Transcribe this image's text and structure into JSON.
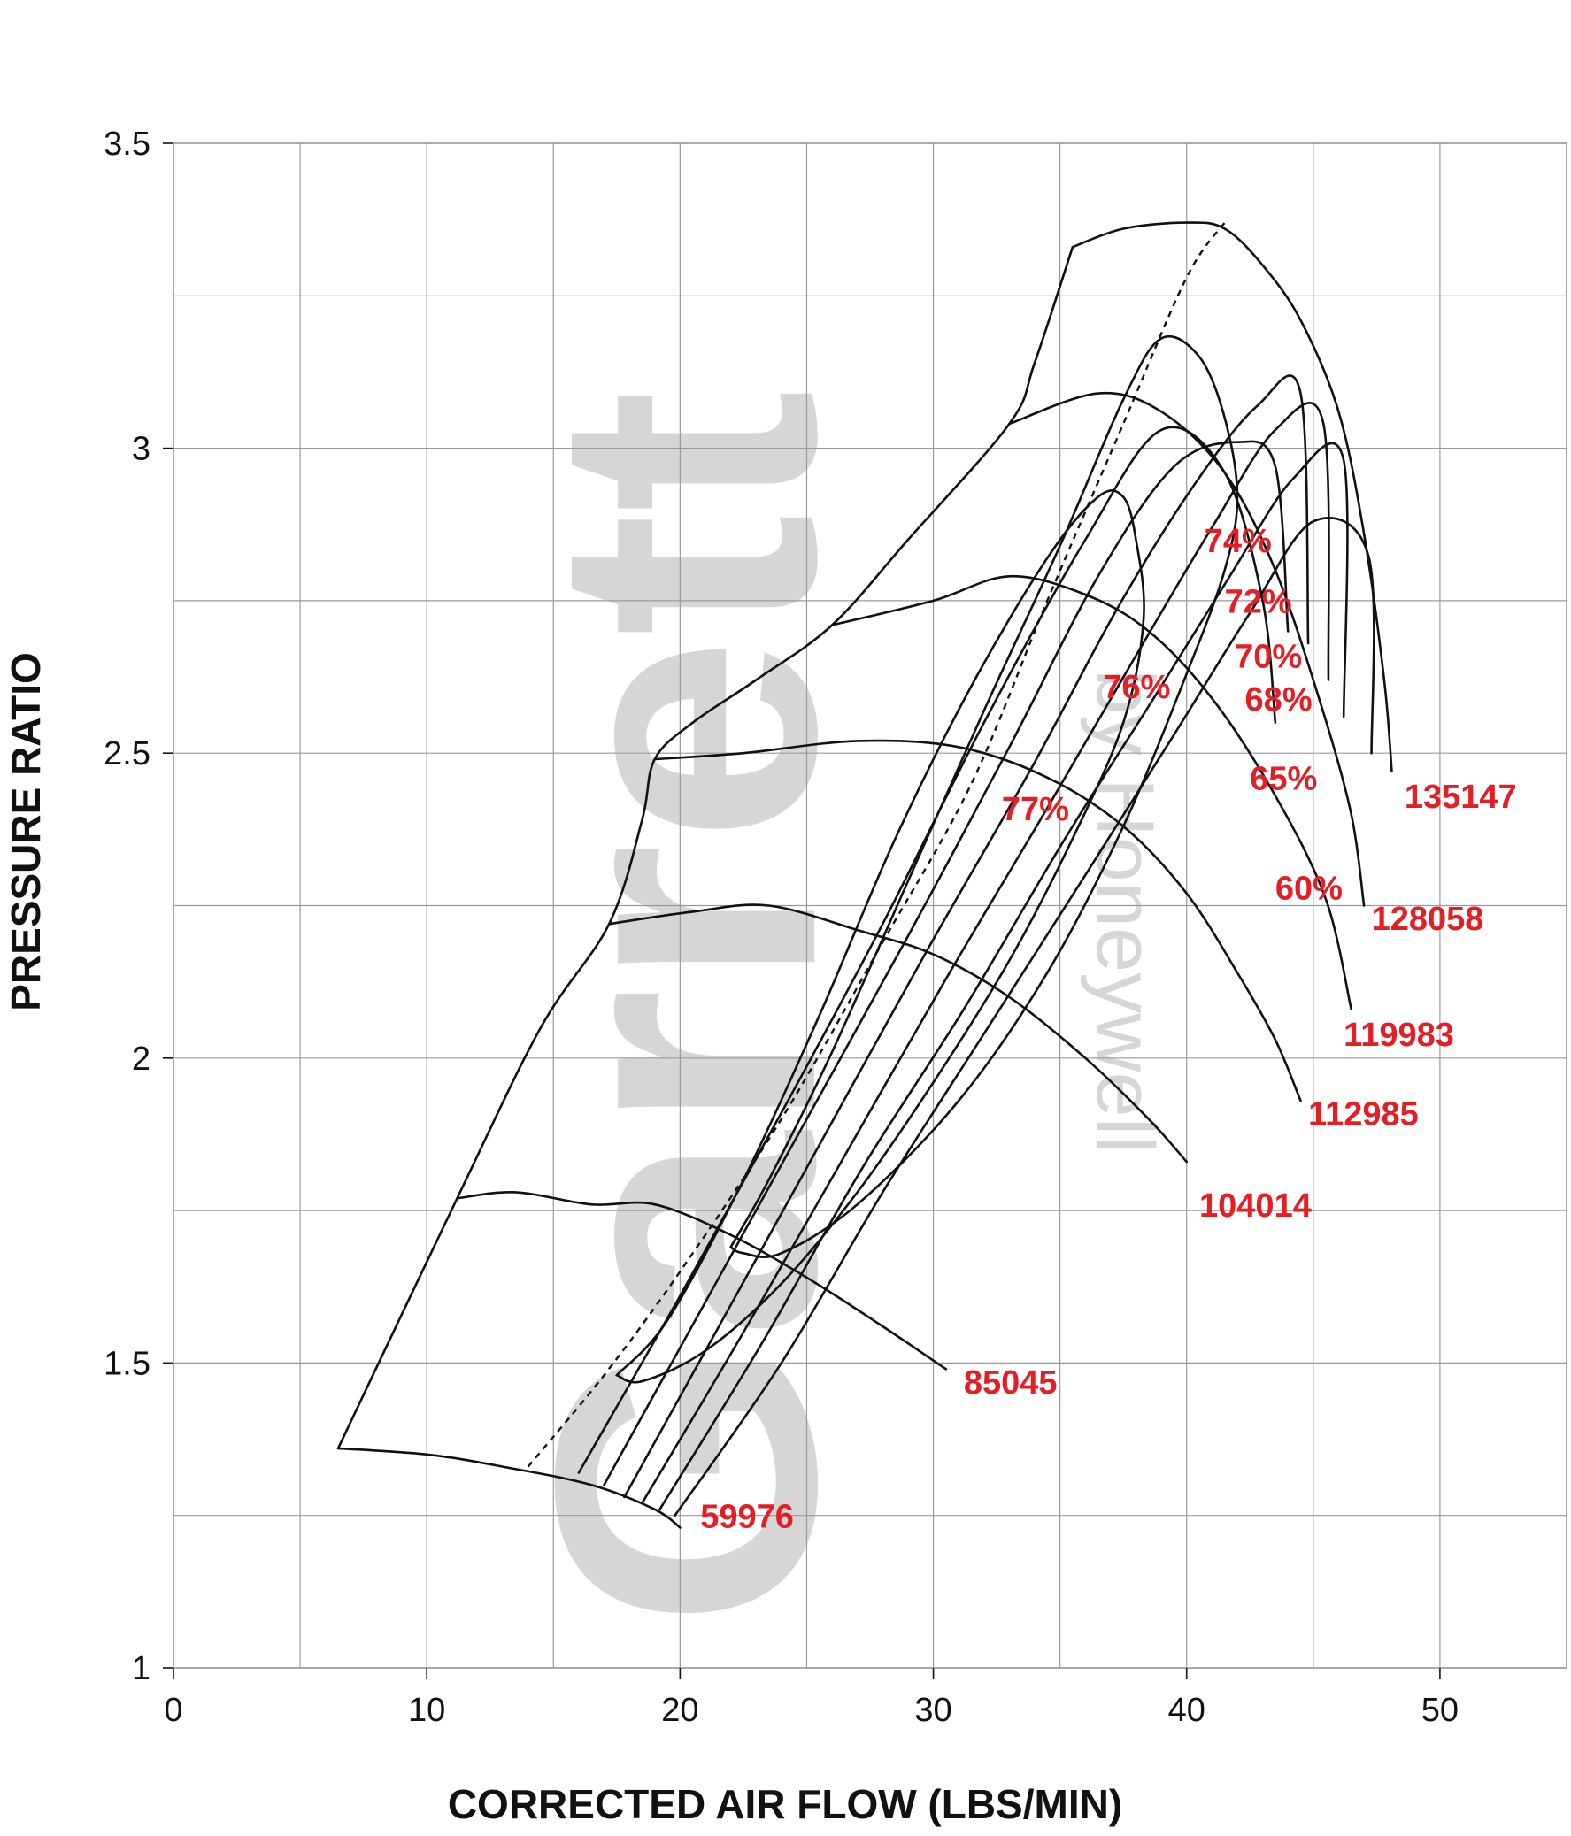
{
  "chart_data": {
    "type": "line",
    "title": "",
    "xlabel": "CORRECTED AIR FLOW (LBS/MIN)",
    "ylabel": "PRESSURE RATIO",
    "xlim": [
      0,
      55
    ],
    "ylim": [
      1,
      3.5
    ],
    "x_ticks": [
      "0",
      "10",
      "20",
      "30",
      "40",
      "50"
    ],
    "y_ticks": [
      "1",
      "1.5",
      "2",
      "2.5",
      "3",
      "3.5"
    ],
    "grid": true,
    "watermark": {
      "brand": "Garrett",
      "sub": "by Honeywell"
    },
    "speed_lines": [
      {
        "name": "59976",
        "points": [
          [
            6.5,
            1.36
          ],
          [
            10,
            1.35
          ],
          [
            13,
            1.33
          ],
          [
            16.5,
            1.3
          ],
          [
            19,
            1.26
          ],
          [
            20,
            1.23
          ]
        ]
      },
      {
        "name": "85045",
        "points": [
          [
            11.2,
            1.77
          ],
          [
            13.5,
            1.78
          ],
          [
            16.5,
            1.76
          ],
          [
            19,
            1.76
          ],
          [
            22,
            1.71
          ],
          [
            25,
            1.64
          ],
          [
            28,
            1.56
          ],
          [
            30.5,
            1.49
          ]
        ]
      },
      {
        "name": "104014",
        "points": [
          [
            17.2,
            2.22
          ],
          [
            20.5,
            2.24
          ],
          [
            23.5,
            2.25
          ],
          [
            27,
            2.21
          ],
          [
            30,
            2.17
          ],
          [
            33,
            2.1
          ],
          [
            36,
            2.0
          ],
          [
            38.5,
            1.9
          ],
          [
            40,
            1.83
          ]
        ]
      },
      {
        "name": "112985",
        "points": [
          [
            19,
            2.49
          ],
          [
            22.5,
            2.5
          ],
          [
            27,
            2.52
          ],
          [
            31,
            2.51
          ],
          [
            34.5,
            2.46
          ],
          [
            37.5,
            2.38
          ],
          [
            40,
            2.27
          ],
          [
            42,
            2.14
          ],
          [
            43.5,
            2.03
          ],
          [
            44.5,
            1.93
          ]
        ]
      },
      {
        "name": "119983",
        "points": [
          [
            26,
            2.71
          ],
          [
            30,
            2.75
          ],
          [
            33,
            2.79
          ],
          [
            36,
            2.76
          ],
          [
            38.5,
            2.7
          ],
          [
            41,
            2.59
          ],
          [
            43.5,
            2.43
          ],
          [
            45.5,
            2.26
          ],
          [
            46.5,
            2.08
          ]
        ]
      },
      {
        "name": "128058",
        "points": [
          [
            33,
            3.04
          ],
          [
            36.5,
            3.09
          ],
          [
            39,
            3.06
          ],
          [
            41.5,
            2.96
          ],
          [
            43.5,
            2.8
          ],
          [
            45.3,
            2.58
          ],
          [
            46.5,
            2.4
          ],
          [
            47,
            2.25
          ]
        ]
      },
      {
        "name": "135147",
        "points": [
          [
            35.5,
            3.33
          ],
          [
            37.5,
            3.36
          ],
          [
            40,
            3.37
          ],
          [
            41.5,
            3.36
          ],
          [
            43,
            3.3
          ],
          [
            44.5,
            3.21
          ],
          [
            46,
            3.06
          ],
          [
            47,
            2.86
          ],
          [
            47.8,
            2.62
          ],
          [
            48.1,
            2.47
          ]
        ]
      }
    ],
    "efficiency_islands": [
      {
        "label": "77%",
        "points": [
          [
            17.5,
            1.48
          ],
          [
            19.5,
            1.57
          ],
          [
            22.5,
            1.8
          ],
          [
            25.5,
            2.07
          ],
          [
            28.5,
            2.36
          ],
          [
            31.5,
            2.61
          ],
          [
            34.5,
            2.82
          ],
          [
            36.5,
            2.92
          ],
          [
            37.5,
            2.92
          ],
          [
            38,
            2.85
          ],
          [
            38.3,
            2.72
          ],
          [
            37.5,
            2.55
          ],
          [
            35.5,
            2.36
          ],
          [
            33,
            2.16
          ],
          [
            30,
            1.96
          ],
          [
            27,
            1.78
          ],
          [
            24,
            1.63
          ],
          [
            21,
            1.52
          ],
          [
            18.5,
            1.47
          ],
          [
            17.5,
            1.48
          ]
        ]
      },
      {
        "label": "76%",
        "points": [
          [
            22,
            1.69
          ],
          [
            23.5,
            1.8
          ],
          [
            26,
            2.01
          ],
          [
            29,
            2.29
          ],
          [
            32,
            2.57
          ],
          [
            35,
            2.84
          ],
          [
            37.5,
            3.08
          ],
          [
            39,
            3.18
          ],
          [
            40.5,
            3.15
          ],
          [
            41.5,
            3.05
          ],
          [
            42,
            2.92
          ],
          [
            41.5,
            2.8
          ],
          [
            40,
            2.63
          ],
          [
            37.5,
            2.38
          ],
          [
            34.5,
            2.14
          ],
          [
            31,
            1.93
          ],
          [
            27,
            1.76
          ],
          [
            24,
            1.68
          ],
          [
            22.5,
            1.68
          ],
          [
            22,
            1.69
          ]
        ]
      },
      {
        "label": "74%",
        "points": [
          [
            16,
            1.32
          ],
          [
            20,
            1.61
          ],
          [
            24,
            1.91
          ],
          [
            28,
            2.22
          ],
          [
            32,
            2.55
          ],
          [
            36,
            2.85
          ],
          [
            39,
            3.03
          ],
          [
            41.5,
            2.96
          ],
          [
            43,
            2.75
          ],
          [
            43.5,
            2.55
          ]
        ]
      },
      {
        "label": "72%",
        "points": [
          [
            17,
            1.3
          ],
          [
            21,
            1.6
          ],
          [
            25,
            1.9
          ],
          [
            29,
            2.2
          ],
          [
            33,
            2.51
          ],
          [
            36.5,
            2.79
          ],
          [
            39.5,
            2.97
          ],
          [
            42,
            3.01
          ],
          [
            43.5,
            2.97
          ],
          [
            44,
            2.7
          ]
        ]
      },
      {
        "label": "70%",
        "points": [
          [
            17.8,
            1.28
          ],
          [
            21.8,
            1.58
          ],
          [
            25.8,
            1.88
          ],
          [
            29.8,
            2.18
          ],
          [
            33.8,
            2.47
          ],
          [
            37.3,
            2.74
          ],
          [
            40.3,
            2.94
          ],
          [
            42.8,
            3.07
          ],
          [
            44.5,
            3.09
          ],
          [
            44.8,
            2.68
          ]
        ]
      },
      {
        "label": "68%",
        "points": [
          [
            18.5,
            1.27
          ],
          [
            22.5,
            1.55
          ],
          [
            26.5,
            1.84
          ],
          [
            30.5,
            2.13
          ],
          [
            34.5,
            2.41
          ],
          [
            38,
            2.66
          ],
          [
            41,
            2.87
          ],
          [
            43.5,
            3.03
          ],
          [
            45.4,
            3.04
          ],
          [
            45.6,
            2.62
          ]
        ]
      },
      {
        "label": "65%",
        "points": [
          [
            19.2,
            1.26
          ],
          [
            23.2,
            1.53
          ],
          [
            27.2,
            1.82
          ],
          [
            31.2,
            2.08
          ],
          [
            35.2,
            2.36
          ],
          [
            38.7,
            2.59
          ],
          [
            41.7,
            2.79
          ],
          [
            44.2,
            2.95
          ],
          [
            46.2,
            2.98
          ],
          [
            46.2,
            2.56
          ]
        ]
      },
      {
        "label": "60%",
        "points": [
          [
            19.8,
            1.25
          ],
          [
            24,
            1.5
          ],
          [
            28,
            1.78
          ],
          [
            32,
            2.04
          ],
          [
            36,
            2.3
          ],
          [
            39.5,
            2.53
          ],
          [
            42.5,
            2.73
          ],
          [
            45,
            2.88
          ],
          [
            47.2,
            2.82
          ],
          [
            47.3,
            2.5
          ]
        ]
      }
    ],
    "choke_line": {
      "points": [
        [
          6.5,
          1.36
        ],
        [
          11.2,
          1.77
        ],
        [
          14.5,
          2.05
        ],
        [
          17.2,
          2.22
        ],
        [
          18.5,
          2.39
        ],
        [
          19,
          2.49
        ],
        [
          20.5,
          2.55
        ],
        [
          23,
          2.62
        ],
        [
          26,
          2.71
        ],
        [
          29,
          2.85
        ],
        [
          33,
          3.04
        ],
        [
          34,
          3.14
        ],
        [
          35.5,
          3.33
        ]
      ]
    },
    "surge_dashed_line": {
      "points": [
        [
          14,
          1.33
        ],
        [
          17,
          1.48
        ],
        [
          20,
          1.65
        ],
        [
          24,
          1.9
        ],
        [
          28,
          2.19
        ],
        [
          31.5,
          2.45
        ],
        [
          34.5,
          2.75
        ],
        [
          37.5,
          3.04
        ],
        [
          40,
          3.28
        ],
        [
          41.5,
          3.37
        ]
      ]
    },
    "label_positions_data": [
      {
        "text": "59976",
        "x": 20.8,
        "y": 1.23
      },
      {
        "text": "85045",
        "x": 31.2,
        "y": 1.45
      },
      {
        "text": "104014",
        "x": 40.5,
        "y": 1.74
      },
      {
        "text": "112985",
        "x": 44.8,
        "y": 1.89
      },
      {
        "text": "119983",
        "x": 46.2,
        "y": 2.02
      },
      {
        "text": "128058",
        "x": 47.3,
        "y": 2.21
      },
      {
        "text": "135147",
        "x": 48.6,
        "y": 2.41
      },
      {
        "text": "74%",
        "x": 40.7,
        "y": 2.83
      },
      {
        "text": "72%",
        "x": 41.5,
        "y": 2.73
      },
      {
        "text": "70%",
        "x": 41.9,
        "y": 2.64
      },
      {
        "text": "68%",
        "x": 42.3,
        "y": 2.57
      },
      {
        "text": "65%",
        "x": 42.5,
        "y": 2.44
      },
      {
        "text": "60%",
        "x": 43.5,
        "y": 2.26
      },
      {
        "text": "76%",
        "x": 36.7,
        "y": 2.59
      },
      {
        "text": "77%",
        "x": 32.7,
        "y": 2.39
      }
    ]
  }
}
